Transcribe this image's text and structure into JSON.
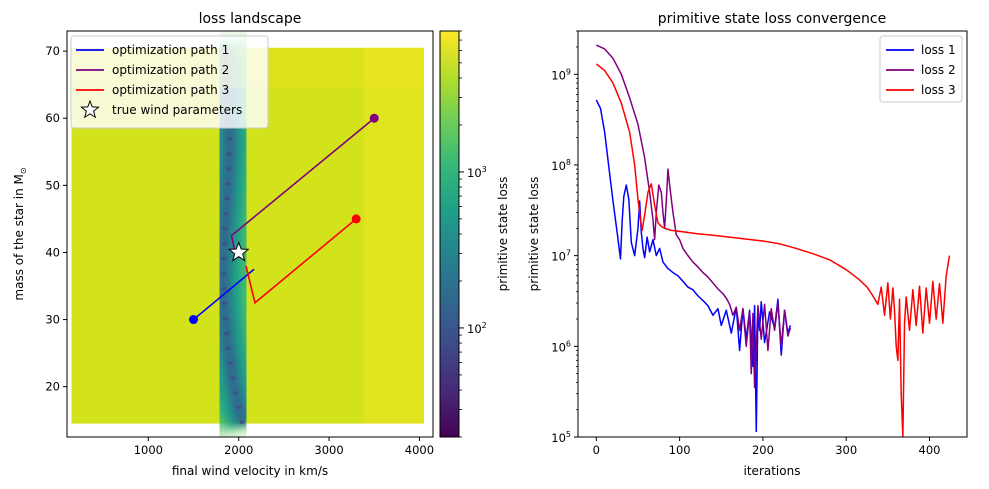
{
  "chart_data": [
    {
      "type": "heatmap",
      "title": "loss landscape",
      "xlabel": "final wind velocity in km/s",
      "ylabel": "mass of the star in M",
      "ylabel_sub": "⊙",
      "xlim": [
        100,
        4150
      ],
      "ylim": [
        12.5,
        73
      ],
      "xticks": [
        1000,
        2000,
        3000,
        4000
      ],
      "yticks": [
        20,
        30,
        40,
        50,
        60,
        70
      ],
      "grid": false,
      "legend_position": "top-left",
      "landscape": {
        "x_range": [
          150,
          4050
        ],
        "y_range": [
          14.5,
          70.5
        ],
        "valley": [
          [
            2040,
            14.5
          ],
          [
            1950,
            20
          ],
          [
            1880,
            26
          ],
          [
            1840,
            32
          ],
          [
            1830,
            38
          ],
          [
            1850,
            44
          ],
          [
            1880,
            50
          ],
          [
            1900,
            56
          ],
          [
            1880,
            62
          ],
          [
            1840,
            70.5
          ]
        ],
        "note": "log-scaled primitive state loss; low-loss valley runs through true wind parameters"
      },
      "colorbar": {
        "label": "primitive state loss",
        "scale": "log",
        "range": [
          20,
          8000
        ],
        "ticks": [
          100,
          1000
        ],
        "tick_base": "10",
        "tick_exps": [
          "2",
          "3"
        ],
        "colormap": [
          "#440154",
          "#482878",
          "#3e4989",
          "#31688e",
          "#26828e",
          "#1f9e89",
          "#35b779",
          "#6ece58",
          "#b5de2b",
          "#fde725"
        ]
      },
      "series": [
        {
          "name": "optimization path 1",
          "color": "#0000ff",
          "points": [
            [
              1500,
              30
            ],
            [
              2170,
              37.5
            ]
          ]
        },
        {
          "name": "optimization path 2",
          "color": "#800080",
          "points": [
            [
              3500,
              60
            ],
            [
              1920,
              42.5
            ],
            [
              1960,
              40
            ]
          ]
        },
        {
          "name": "optimization path 3",
          "color": "#ff0000",
          "points": [
            [
              3300,
              45
            ],
            [
              2180,
              32.5
            ],
            [
              2080,
              38
            ]
          ]
        }
      ],
      "markers": [
        {
          "name": "true wind parameters",
          "symbol": "star",
          "x": 2000,
          "y": 40
        }
      ]
    },
    {
      "type": "line",
      "title": "primitive state loss convergence",
      "xlabel": "iterations",
      "ylabel": "primitive state loss",
      "xlim": [
        -22,
        445
      ],
      "ylim": [
        100000,
        3000000000
      ],
      "yscale": "log",
      "xticks": [
        0,
        100,
        200,
        300,
        400
      ],
      "yticks": [
        100000,
        1000000,
        10000000,
        100000000,
        1000000000
      ],
      "ytick_base": "10",
      "ytick_exps": [
        "5",
        "6",
        "7",
        "8",
        "9"
      ],
      "grid": false,
      "legend_position": "top-right",
      "series": [
        {
          "name": "loss 1",
          "color": "#0000ff",
          "x": [
            0,
            5,
            10,
            15,
            20,
            25,
            29,
            31,
            33,
            36,
            39,
            42,
            46,
            50,
            52,
            54,
            56,
            58,
            61,
            64,
            68,
            72,
            76,
            80,
            86,
            92,
            98,
            104,
            110,
            116,
            122,
            128,
            134,
            140,
            146,
            150,
            156,
            162,
            168,
            172,
            176,
            180,
            184,
            188,
            190,
            192,
            194,
            196,
            198,
            202,
            208,
            214,
            218,
            222,
            226,
            230,
            233
          ],
          "y": [
            520000000,
            420000000,
            230000000,
            95000000,
            40000000,
            18000000,
            9200000,
            24000000,
            45000000,
            60000000,
            42000000,
            14000000,
            10000000,
            20000000,
            40000000,
            18000000,
            12000000,
            9500000,
            16000000,
            11000000,
            15000000,
            10000000,
            12000000,
            8500000,
            7200000,
            6500000,
            6000000,
            5200000,
            4500000,
            4200000,
            3600000,
            3200000,
            2800000,
            2200000,
            2600000,
            1700000,
            2500000,
            1400000,
            2700000,
            900000,
            2600000,
            1200000,
            2500000,
            600000,
            2800000,
            115000,
            2500000,
            1500000,
            3100000,
            1100000,
            2400000,
            1600000,
            3300000,
            800000,
            2500000,
            1400000,
            1700000
          ]
        },
        {
          "name": "loss 2",
          "color": "#800080",
          "x": [
            0,
            10,
            20,
            30,
            40,
            50,
            58,
            64,
            68,
            70,
            72,
            75,
            78,
            80,
            82,
            84,
            86,
            88,
            92,
            96,
            100,
            104,
            110,
            116,
            122,
            128,
            134,
            140,
            146,
            152,
            156,
            160,
            164,
            168,
            172,
            176,
            180,
            184,
            186,
            188,
            190,
            194,
            198,
            202,
            206,
            210,
            214,
            218,
            222,
            226,
            230,
            233
          ],
          "y": [
            2100000000,
            1900000000,
            1500000000,
            1000000000,
            550000000,
            280000000,
            120000000,
            50000000,
            25000000,
            15000000,
            30000000,
            60000000,
            50000000,
            30000000,
            20000000,
            40000000,
            90000000,
            60000000,
            30000000,
            17000000,
            15000000,
            12000000,
            10000000,
            8500000,
            7500000,
            6500000,
            5800000,
            5000000,
            4300000,
            3800000,
            3400000,
            2900000,
            2200000,
            2700000,
            1500000,
            2600000,
            1000000,
            2400000,
            500000,
            2300000,
            350000,
            2800000,
            1200000,
            2900000,
            900000,
            2600000,
            1500000,
            3000000,
            1000000,
            2500000,
            1300000,
            1600000
          ]
        },
        {
          "name": "loss 3",
          "color": "#ff0000",
          "x": [
            0,
            10,
            20,
            30,
            40,
            46,
            50,
            53,
            55,
            58,
            62,
            66,
            70,
            74,
            78,
            82,
            86,
            90,
            100,
            120,
            140,
            160,
            180,
            200,
            220,
            240,
            260,
            280,
            300,
            315,
            325,
            332,
            338,
            342,
            346,
            350,
            353,
            356,
            358,
            360,
            362,
            364,
            366,
            368,
            370,
            372,
            376,
            380,
            384,
            388,
            392,
            396,
            400,
            404,
            408,
            412,
            416,
            420,
            424
          ],
          "y": [
            1300000000,
            1100000000,
            800000000,
            480000000,
            230000000,
            100000000,
            42000000,
            25000000,
            19000000,
            28000000,
            50000000,
            62000000,
            36000000,
            23000000,
            21000000,
            20000000,
            19500000,
            19000000,
            18500000,
            17500000,
            16800000,
            16000000,
            15200000,
            14500000,
            13500000,
            12000000,
            10500000,
            9000000,
            7000000,
            5500000,
            4500000,
            3600000,
            2900000,
            4500000,
            2200000,
            5000000,
            2000000,
            4400000,
            2500000,
            1000000,
            700000,
            3300000,
            300000,
            100000,
            1800000,
            3500000,
            1500000,
            4200000,
            1700000,
            4600000,
            1400000,
            4400000,
            1800000,
            5200000,
            2000000,
            4900000,
            1800000,
            6000000,
            10000000
          ]
        }
      ]
    }
  ]
}
